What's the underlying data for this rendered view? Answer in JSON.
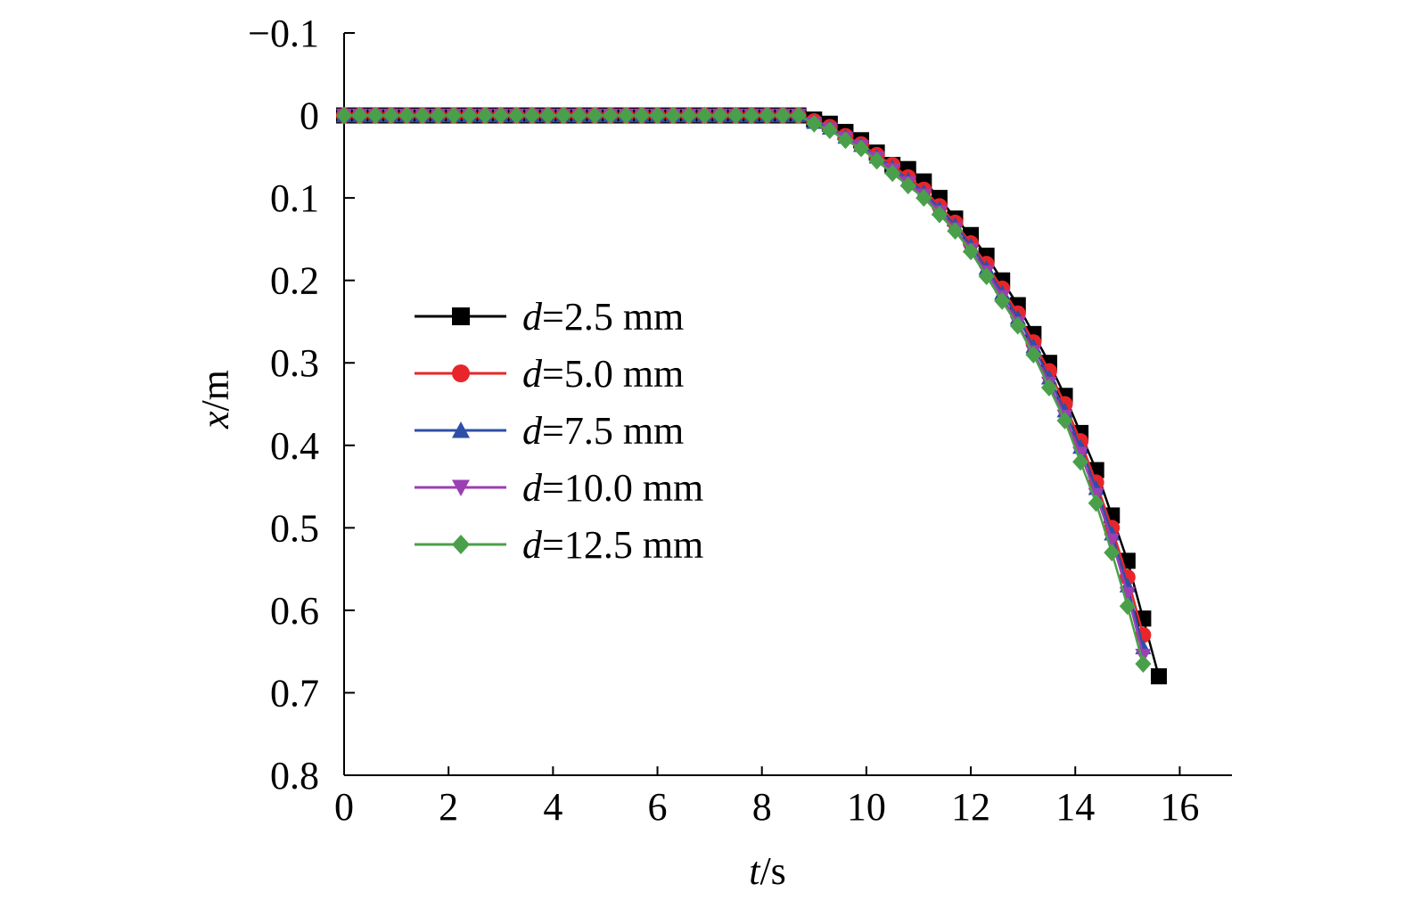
{
  "chart_data": {
    "type": "line",
    "xlabel": {
      "var": "t",
      "unit": "/s"
    },
    "ylabel": {
      "var": "x",
      "unit": "/m"
    },
    "xlim": [
      0,
      17
    ],
    "ylim": [
      -0.1,
      0.8
    ],
    "y_inverted": true,
    "xticks": [
      0,
      2,
      4,
      6,
      8,
      10,
      12,
      14,
      16
    ],
    "xtick_labels": [
      "0",
      "2",
      "4",
      "6",
      "8",
      "10",
      "12",
      "14",
      "16"
    ],
    "yticks": [
      -0.1,
      0,
      0.1,
      0.2,
      0.3,
      0.4,
      0.5,
      0.6,
      0.7,
      0.8
    ],
    "ytick_labels": [
      "−0.1",
      "0",
      "0.1",
      "0.2",
      "0.3",
      "0.4",
      "0.5",
      "0.6",
      "0.7",
      "0.8"
    ],
    "legend_position": "center-left",
    "grid": false,
    "series": [
      {
        "name": "2.5 mm",
        "var": "d",
        "color": "#000000",
        "marker": "square",
        "x": [
          0,
          0.3,
          0.6,
          0.9,
          1.2,
          1.5,
          1.8,
          2.1,
          2.4,
          2.7,
          3.0,
          3.3,
          3.6,
          3.9,
          4.2,
          4.5,
          4.8,
          5.1,
          5.4,
          5.7,
          6.0,
          6.3,
          6.6,
          6.9,
          7.2,
          7.5,
          7.8,
          8.1,
          8.4,
          8.7,
          9.0,
          9.3,
          9.6,
          9.9,
          10.2,
          10.5,
          10.8,
          11.1,
          11.4,
          11.7,
          12.0,
          12.3,
          12.6,
          12.9,
          13.2,
          13.5,
          13.8,
          14.1,
          14.4,
          14.7,
          15.0,
          15.3,
          15.6
        ],
        "y": [
          0,
          0,
          0,
          0,
          0,
          0,
          0,
          0,
          0,
          0,
          0,
          0,
          0,
          0,
          0,
          0,
          0,
          0,
          0,
          0,
          0,
          0,
          0,
          0,
          0,
          0,
          0,
          0,
          0,
          0,
          0.005,
          0.01,
          0.02,
          0.03,
          0.045,
          0.06,
          0.065,
          0.08,
          0.1,
          0.125,
          0.145,
          0.17,
          0.2,
          0.23,
          0.265,
          0.3,
          0.34,
          0.385,
          0.43,
          0.485,
          0.54,
          0.61,
          0.68
        ]
      },
      {
        "name": "5.0 mm",
        "var": "d",
        "color": "#e8262a",
        "marker": "circle",
        "x": [
          0,
          0.3,
          0.6,
          0.9,
          1.2,
          1.5,
          1.8,
          2.1,
          2.4,
          2.7,
          3.0,
          3.3,
          3.6,
          3.9,
          4.2,
          4.5,
          4.8,
          5.1,
          5.4,
          5.7,
          6.0,
          6.3,
          6.6,
          6.9,
          7.2,
          7.5,
          7.8,
          8.1,
          8.4,
          8.7,
          9.0,
          9.3,
          9.6,
          9.9,
          10.2,
          10.5,
          10.8,
          11.1,
          11.4,
          11.7,
          12.0,
          12.3,
          12.6,
          12.9,
          13.2,
          13.5,
          13.8,
          14.1,
          14.4,
          14.7,
          15.0,
          15.3
        ],
        "y": [
          0,
          0,
          0,
          0,
          0,
          0,
          0,
          0,
          0,
          0,
          0,
          0,
          0,
          0,
          0,
          0,
          0,
          0,
          0,
          0,
          0,
          0,
          0,
          0,
          0,
          0,
          0,
          0,
          0,
          0,
          0.007,
          0.014,
          0.025,
          0.035,
          0.048,
          0.06,
          0.075,
          0.09,
          0.11,
          0.13,
          0.155,
          0.18,
          0.21,
          0.24,
          0.275,
          0.31,
          0.35,
          0.395,
          0.445,
          0.5,
          0.56,
          0.63
        ]
      },
      {
        "name": "7.5 mm",
        "var": "d",
        "color": "#2e4fa8",
        "marker": "triangle-up",
        "x": [
          0,
          0.3,
          0.6,
          0.9,
          1.2,
          1.5,
          1.8,
          2.1,
          2.4,
          2.7,
          3.0,
          3.3,
          3.6,
          3.9,
          4.2,
          4.5,
          4.8,
          5.1,
          5.4,
          5.7,
          6.0,
          6.3,
          6.6,
          6.9,
          7.2,
          7.5,
          7.8,
          8.1,
          8.4,
          8.7,
          9.0,
          9.3,
          9.6,
          9.9,
          10.2,
          10.5,
          10.8,
          11.1,
          11.4,
          11.7,
          12.0,
          12.3,
          12.6,
          12.9,
          13.2,
          13.5,
          13.8,
          14.1,
          14.4,
          14.7,
          15.0,
          15.3
        ],
        "y": [
          0,
          0,
          0,
          0,
          0,
          0,
          0,
          0,
          0,
          0,
          0,
          0,
          0,
          0,
          0,
          0,
          0,
          0,
          0,
          0,
          0,
          0,
          0,
          0,
          0,
          0,
          0,
          0,
          0,
          0,
          0.008,
          0.015,
          0.026,
          0.036,
          0.05,
          0.063,
          0.078,
          0.093,
          0.113,
          0.133,
          0.158,
          0.185,
          0.215,
          0.245,
          0.28,
          0.318,
          0.358,
          0.402,
          0.452,
          0.507,
          0.57,
          0.645
        ]
      },
      {
        "name": "10.0 mm",
        "var": "d",
        "color": "#9b3fb3",
        "marker": "triangle-down",
        "x": [
          0,
          0.3,
          0.6,
          0.9,
          1.2,
          1.5,
          1.8,
          2.1,
          2.4,
          2.7,
          3.0,
          3.3,
          3.6,
          3.9,
          4.2,
          4.5,
          4.8,
          5.1,
          5.4,
          5.7,
          6.0,
          6.3,
          6.6,
          6.9,
          7.2,
          7.5,
          7.8,
          8.1,
          8.4,
          8.7,
          9.0,
          9.3,
          9.6,
          9.9,
          10.2,
          10.5,
          10.8,
          11.1,
          11.4,
          11.7,
          12.0,
          12.3,
          12.6,
          12.9,
          13.2,
          13.5,
          13.8,
          14.1,
          14.4,
          14.7,
          15.0,
          15.3
        ],
        "y": [
          0,
          0,
          0,
          0,
          0,
          0,
          0,
          0,
          0,
          0,
          0,
          0,
          0,
          0,
          0,
          0,
          0,
          0,
          0,
          0,
          0,
          0,
          0,
          0,
          0,
          0,
          0,
          0,
          0,
          0,
          0.01,
          0.017,
          0.028,
          0.038,
          0.052,
          0.066,
          0.082,
          0.097,
          0.117,
          0.138,
          0.163,
          0.19,
          0.22,
          0.252,
          0.287,
          0.325,
          0.365,
          0.41,
          0.46,
          0.515,
          0.58,
          0.655
        ]
      },
      {
        "name": "12.5 mm",
        "var": "d",
        "color": "#4aa04a",
        "marker": "diamond",
        "x": [
          0,
          0.3,
          0.6,
          0.9,
          1.2,
          1.5,
          1.8,
          2.1,
          2.4,
          2.7,
          3.0,
          3.3,
          3.6,
          3.9,
          4.2,
          4.5,
          4.8,
          5.1,
          5.4,
          5.7,
          6.0,
          6.3,
          6.6,
          6.9,
          7.2,
          7.5,
          7.8,
          8.1,
          8.4,
          8.7,
          9.0,
          9.3,
          9.6,
          9.9,
          10.2,
          10.5,
          10.8,
          11.1,
          11.4,
          11.7,
          12.0,
          12.3,
          12.6,
          12.9,
          13.2,
          13.5,
          13.8,
          14.1,
          14.4,
          14.7,
          15.0,
          15.3
        ],
        "y": [
          0,
          0,
          0,
          0,
          0,
          0,
          0,
          0,
          0,
          0,
          0,
          0,
          0,
          0,
          0,
          0,
          0,
          0,
          0,
          0,
          0,
          0,
          0,
          0,
          0,
          0,
          0,
          0,
          0,
          0,
          0.01,
          0.018,
          0.03,
          0.04,
          0.055,
          0.07,
          0.085,
          0.1,
          0.12,
          0.14,
          0.165,
          0.195,
          0.225,
          0.255,
          0.29,
          0.33,
          0.37,
          0.42,
          0.47,
          0.53,
          0.595,
          0.665
        ]
      }
    ]
  }
}
